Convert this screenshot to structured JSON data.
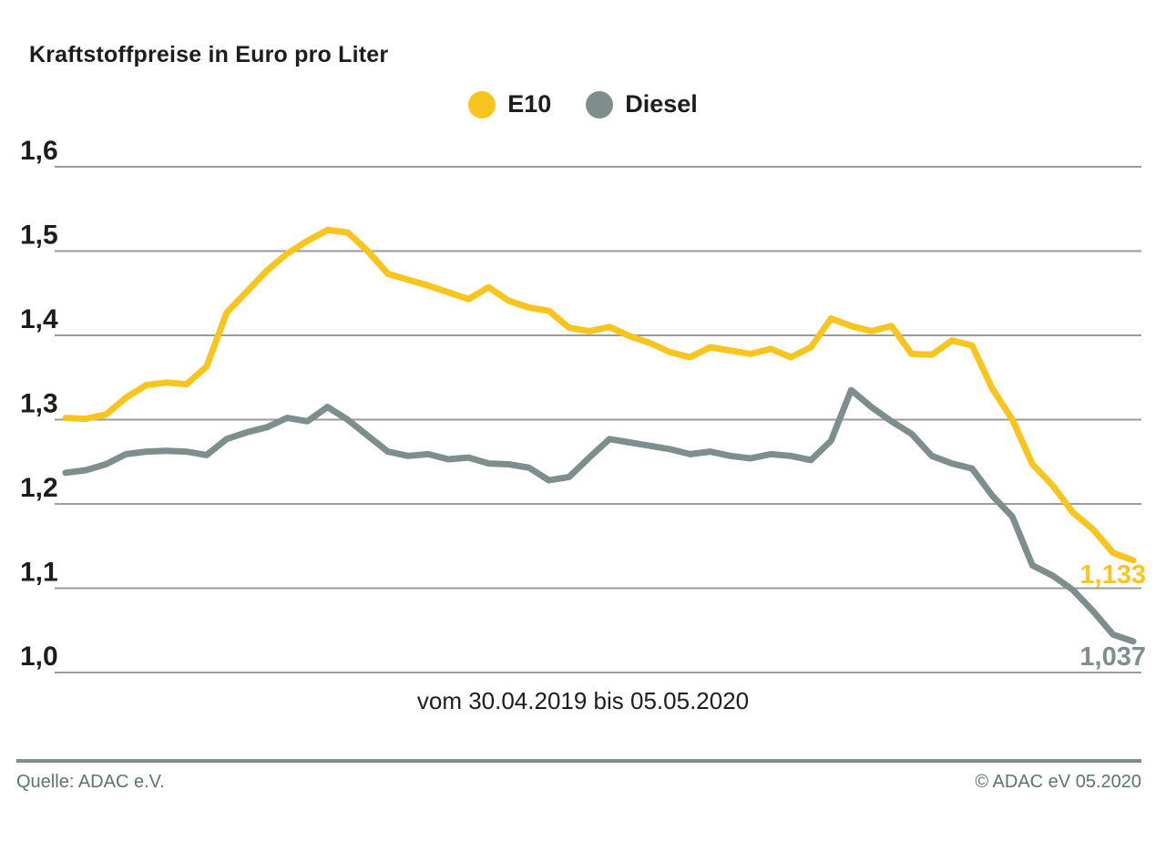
{
  "page": {
    "title": "Kraftstoffpreise in Euro pro Liter",
    "caption": "vom 30.04.2019 bis 05.05.2020",
    "footer": {
      "source": "Quelle: ADAC e.V.",
      "copyright": "© ADAC eV 05.2020"
    }
  },
  "chart_data": {
    "type": "line",
    "title": "Kraftstoffpreise in Euro pro Liter",
    "subtitle": "vom 30.04.2019 bis 05.05.2020",
    "x_start_date": "30.04.2019",
    "x_end_date": "05.05.2020",
    "x_interval": "weekly",
    "x_points": 54,
    "ylabel": "Euro pro Liter",
    "ylim": [
      1.0,
      1.6
    ],
    "grid": "horizontal",
    "legend_position": "top-center",
    "colors": {
      "e10": "#f7c51d",
      "diesel": "#7e8e8c",
      "gridline": "#9b9b9b",
      "text": "#1d1d1b",
      "footer_text": "#5e7173",
      "footer_rule": "#7e8e8c"
    },
    "y_ticks": [
      {
        "value": 1.6,
        "label": "1,6"
      },
      {
        "value": 1.5,
        "label": "1,5"
      },
      {
        "value": 1.4,
        "label": "1,4"
      },
      {
        "value": 1.3,
        "label": "1,3"
      },
      {
        "value": 1.2,
        "label": "1,2"
      },
      {
        "value": 1.1,
        "label": "1,1"
      },
      {
        "value": 1.0,
        "label": "1,0"
      }
    ],
    "series": [
      {
        "name": "E10",
        "color": "#f7c51d",
        "end_value": 1.133,
        "end_label": "1,133",
        "values": [
          1.302,
          1.301,
          1.306,
          1.326,
          1.341,
          1.344,
          1.342,
          1.363,
          1.427,
          1.452,
          1.477,
          1.497,
          1.512,
          1.525,
          1.522,
          1.5,
          1.473,
          1.466,
          1.459,
          1.451,
          1.443,
          1.457,
          1.441,
          1.433,
          1.429,
          1.409,
          1.405,
          1.41,
          1.399,
          1.391,
          1.38,
          1.374,
          1.386,
          1.382,
          1.378,
          1.384,
          1.374,
          1.386,
          1.42,
          1.411,
          1.405,
          1.411,
          1.378,
          1.377,
          1.394,
          1.388,
          1.337,
          1.3,
          1.247,
          1.222,
          1.19,
          1.17,
          1.142,
          1.133
        ]
      },
      {
        "name": "Diesel",
        "color": "#7e8e8c",
        "end_value": 1.037,
        "end_label": "1,037",
        "values": [
          1.237,
          1.24,
          1.247,
          1.259,
          1.262,
          1.263,
          1.262,
          1.258,
          1.277,
          1.285,
          1.291,
          1.302,
          1.298,
          1.315,
          1.3,
          1.281,
          1.262,
          1.257,
          1.259,
          1.253,
          1.255,
          1.248,
          1.247,
          1.243,
          1.228,
          1.232,
          1.255,
          1.277,
          1.273,
          1.269,
          1.265,
          1.259,
          1.262,
          1.257,
          1.254,
          1.259,
          1.257,
          1.252,
          1.275,
          1.335,
          1.315,
          1.298,
          1.283,
          1.257,
          1.248,
          1.242,
          1.21,
          1.185,
          1.127,
          1.115,
          1.098,
          1.073,
          1.045,
          1.037
        ]
      }
    ]
  }
}
